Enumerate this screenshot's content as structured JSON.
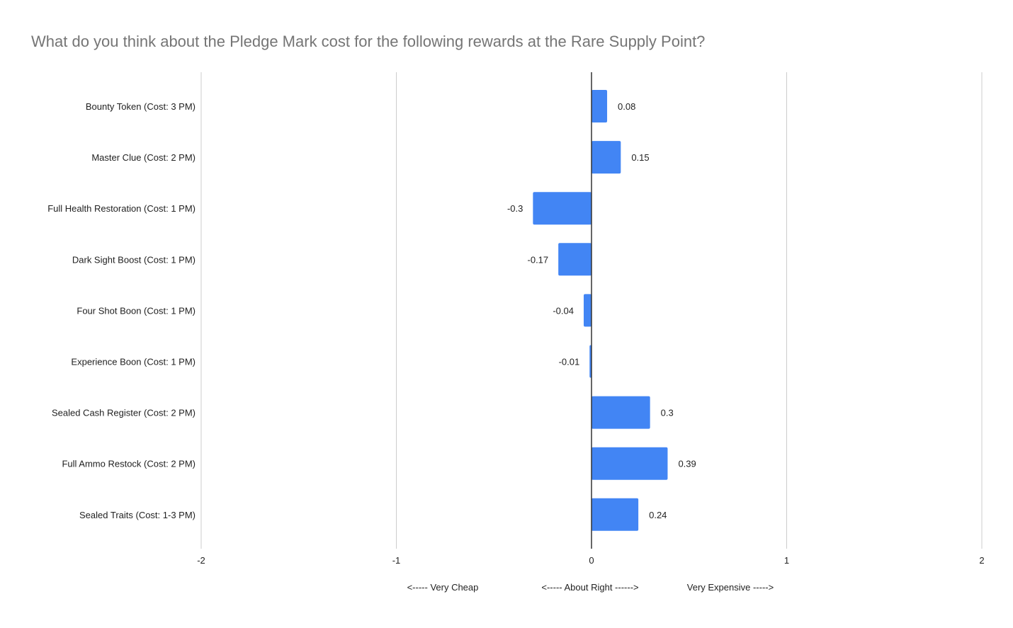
{
  "chart_data": {
    "type": "bar",
    "orientation": "horizontal",
    "title": "What do you think about the Pledge Mark cost for the following rewards at the Rare Supply Point?",
    "categories": [
      "Bounty Token (Cost: 3 PM)",
      "Master Clue (Cost: 2 PM)",
      "Full Health Restoration (Cost: 1 PM)",
      "Dark Sight Boost (Cost: 1 PM)",
      "Four Shot Boon (Cost: 1 PM)",
      "Experience Boon (Cost: 1 PM)",
      "Sealed Cash Register (Cost: 2 PM)",
      "Full Ammo Restock (Cost: 2 PM)",
      "Sealed Traits (Cost: 1-3 PM)"
    ],
    "values": [
      0.08,
      0.15,
      -0.3,
      -0.17,
      -0.04,
      -0.01,
      0.3,
      0.39,
      0.24
    ],
    "data_labels": [
      "0.08",
      "0.15",
      "-0.3",
      "-0.17",
      "-0.04",
      "-0.01",
      "0.3",
      "0.39",
      "0.24"
    ],
    "xlim": [
      -2,
      2
    ],
    "xticks": [
      -2,
      -1,
      0,
      1,
      2
    ],
    "xtick_labels": [
      "-2",
      "-1",
      "0",
      "1",
      "2"
    ],
    "xlabel_parts": [
      "<----- Very Cheap",
      "<----- About Right ------>",
      "Very Expensive ----->"
    ],
    "grid": true,
    "legend": "none",
    "colors": {
      "bar": "#4285F4",
      "title": "#757575",
      "grid": "#cccccc",
      "axis": "#333333",
      "text": "#222222"
    }
  }
}
